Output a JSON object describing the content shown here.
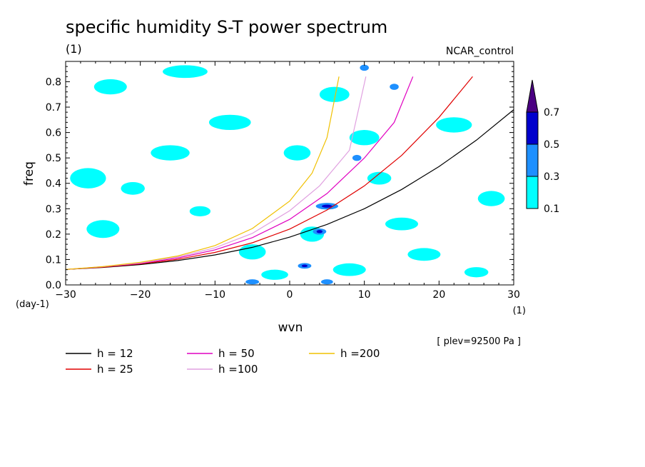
{
  "chart_data": {
    "type": "heatmap",
    "title": "specific humidity S-T power spectrum",
    "subtitle": "(1)",
    "run_label": "NCAR_control",
    "xlabel": "wvn",
    "ylabel": "freq",
    "x_unit": "(1)",
    "y_unit": "(day-1)",
    "xlim": [
      -30,
      30
    ],
    "ylim": [
      0,
      0.88
    ],
    "x_ticks": [
      -30,
      -20,
      -10,
      0,
      10,
      20,
      30
    ],
    "y_ticks": [
      0.0,
      0.1,
      0.2,
      0.3,
      0.4,
      0.5,
      0.6,
      0.7,
      0.8
    ],
    "level_note": "[ plev=92500 Pa ]",
    "colorbar": {
      "levels": [
        0.1,
        0.3,
        0.5,
        0.7
      ],
      "labels": [
        "0.1",
        "0.3",
        "0.5",
        "0.7"
      ],
      "colors": [
        "#00ffff",
        "#1e90ff",
        "#0000cd",
        "#4b0082"
      ]
    },
    "contour_patches": [
      {
        "x": -24,
        "y": 0.78,
        "w": 2.2,
        "h": 0.03,
        "level": 0.1
      },
      {
        "x": -14,
        "y": 0.84,
        "w": 3,
        "h": 0.025,
        "level": 0.1
      },
      {
        "x": -8,
        "y": 0.64,
        "w": 2.8,
        "h": 0.03,
        "level": 0.1
      },
      {
        "x": -27,
        "y": 0.42,
        "w": 2.4,
        "h": 0.04,
        "level": 0.1
      },
      {
        "x": -21,
        "y": 0.38,
        "w": 1.6,
        "h": 0.025,
        "level": 0.1
      },
      {
        "x": -16,
        "y": 0.52,
        "w": 2.6,
        "h": 0.03,
        "level": 0.1
      },
      {
        "x": -25,
        "y": 0.22,
        "w": 2.2,
        "h": 0.035,
        "level": 0.1
      },
      {
        "x": -12,
        "y": 0.29,
        "w": 1.4,
        "h": 0.02,
        "level": 0.1
      },
      {
        "x": 1,
        "y": 0.52,
        "w": 1.8,
        "h": 0.03,
        "level": 0.1
      },
      {
        "x": 6,
        "y": 0.75,
        "w": 2,
        "h": 0.03,
        "level": 0.1
      },
      {
        "x": -5,
        "y": 0.13,
        "w": 1.8,
        "h": 0.03,
        "level": 0.1
      },
      {
        "x": 3,
        "y": 0.2,
        "w": 1.6,
        "h": 0.03,
        "level": 0.1
      },
      {
        "x": 15,
        "y": 0.24,
        "w": 2.2,
        "h": 0.025,
        "level": 0.1
      },
      {
        "x": 22,
        "y": 0.63,
        "w": 2.4,
        "h": 0.03,
        "level": 0.1
      },
      {
        "x": 27,
        "y": 0.34,
        "w": 1.8,
        "h": 0.03,
        "level": 0.1
      },
      {
        "x": 18,
        "y": 0.12,
        "w": 2.2,
        "h": 0.025,
        "level": 0.1
      },
      {
        "x": -2,
        "y": 0.04,
        "w": 1.8,
        "h": 0.02,
        "level": 0.1
      },
      {
        "x": 8,
        "y": 0.06,
        "w": 2.2,
        "h": 0.025,
        "level": 0.1
      },
      {
        "x": 25,
        "y": 0.05,
        "w": 1.6,
        "h": 0.02,
        "level": 0.1
      },
      {
        "x": 12,
        "y": 0.42,
        "w": 1.6,
        "h": 0.025,
        "level": 0.1
      },
      {
        "x": 10,
        "y": 0.58,
        "w": 2,
        "h": 0.03,
        "level": 0.1
      },
      {
        "x": 5,
        "y": 0.31,
        "w": 1.5,
        "h": 0.013,
        "level": 0.3
      },
      {
        "x": 4,
        "y": 0.21,
        "w": 0.9,
        "h": 0.012,
        "level": 0.3
      },
      {
        "x": -5,
        "y": 0.012,
        "w": 0.9,
        "h": 0.01,
        "level": 0.3
      },
      {
        "x": 5,
        "y": 0.012,
        "w": 0.8,
        "h": 0.01,
        "level": 0.3
      },
      {
        "x": 2,
        "y": 0.075,
        "w": 0.9,
        "h": 0.011,
        "level": 0.3
      },
      {
        "x": 9,
        "y": 0.5,
        "w": 0.6,
        "h": 0.012,
        "level": 0.3
      },
      {
        "x": 14,
        "y": 0.78,
        "w": 0.6,
        "h": 0.012,
        "level": 0.3
      },
      {
        "x": 10,
        "y": 0.855,
        "w": 0.6,
        "h": 0.012,
        "level": 0.3
      },
      {
        "x": 5,
        "y": 0.31,
        "w": 0.7,
        "h": 0.006,
        "level": 0.5
      },
      {
        "x": 4,
        "y": 0.21,
        "w": 0.4,
        "h": 0.006,
        "level": 0.5
      },
      {
        "x": 2,
        "y": 0.075,
        "w": 0.4,
        "h": 0.005,
        "level": 0.5
      }
    ],
    "series": [
      {
        "name": "h = 12",
        "color": "#000000",
        "x": [
          -30,
          -25,
          -20,
          -15,
          -10,
          -5,
          0,
          5,
          10,
          15,
          20,
          25,
          30
        ],
        "y": [
          0.061,
          0.069,
          0.08,
          0.096,
          0.118,
          0.148,
          0.188,
          0.238,
          0.3,
          0.376,
          0.466,
          0.57,
          0.69
        ]
      },
      {
        "name": "h = 25",
        "color": "#e00000",
        "x": [
          -30,
          -25,
          -20,
          -15,
          -10,
          -5,
          0,
          5,
          10,
          15,
          20,
          24.5
        ],
        "y": [
          0.061,
          0.07,
          0.083,
          0.101,
          0.128,
          0.166,
          0.22,
          0.295,
          0.39,
          0.51,
          0.66,
          0.82
        ]
      },
      {
        "name": "h = 50",
        "color": "#e000c0",
        "x": [
          -30,
          -25,
          -20,
          -15,
          -10,
          -5,
          0,
          5,
          10,
          14,
          16.5
        ],
        "y": [
          0.061,
          0.071,
          0.085,
          0.106,
          0.138,
          0.186,
          0.258,
          0.36,
          0.5,
          0.64,
          0.82
        ]
      },
      {
        "name": "h =100",
        "color": "#e0a0e0",
        "x": [
          -30,
          -25,
          -20,
          -15,
          -10,
          -5,
          0,
          4,
          8,
          10.2
        ],
        "y": [
          0.061,
          0.072,
          0.087,
          0.11,
          0.146,
          0.203,
          0.292,
          0.39,
          0.53,
          0.82
        ]
      },
      {
        "name": "h =200",
        "color": "#f0c000",
        "x": [
          -30,
          -25,
          -20,
          -15,
          -10,
          -5,
          0,
          3,
          5,
          6.6
        ],
        "y": [
          0.061,
          0.072,
          0.089,
          0.114,
          0.155,
          0.222,
          0.33,
          0.44,
          0.58,
          0.82
        ]
      }
    ]
  }
}
